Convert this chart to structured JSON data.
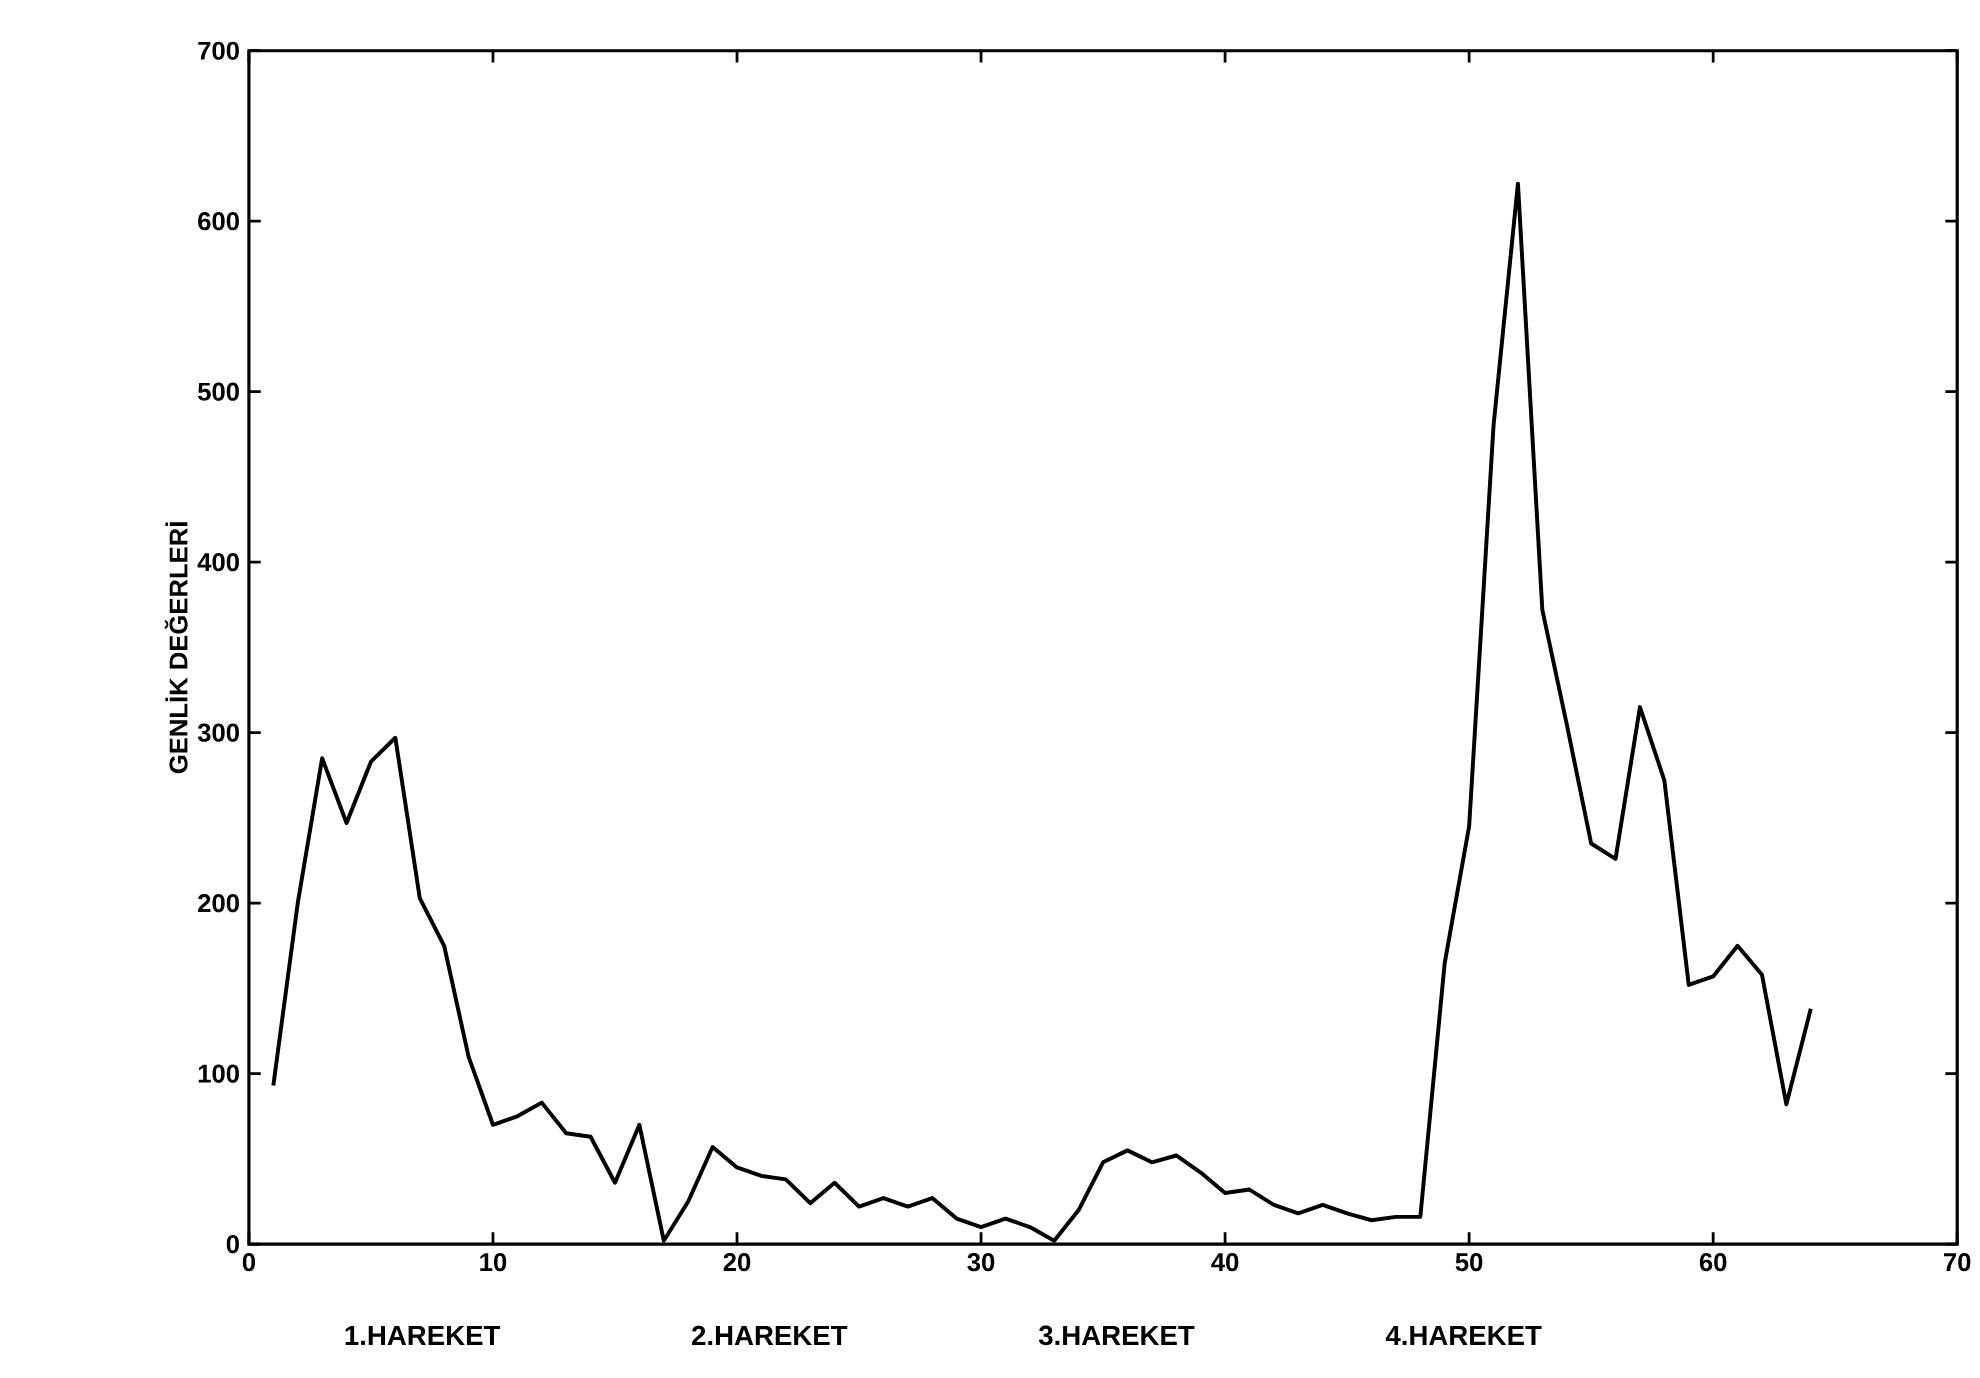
{
  "chart_data": {
    "type": "line",
    "ylabel": "GENLİK DEĞERLERİ",
    "annotations": [
      "1.HAREKET",
      "2.HAREKET",
      "3.HAREKET",
      "4.HAREKET"
    ],
    "x": [
      1,
      2,
      3,
      4,
      5,
      6,
      7,
      8,
      9,
      10,
      11,
      12,
      13,
      14,
      15,
      16,
      17,
      18,
      19,
      20,
      21,
      22,
      23,
      24,
      25,
      26,
      27,
      28,
      29,
      30,
      31,
      32,
      33,
      34,
      35,
      36,
      37,
      38,
      39,
      40,
      41,
      42,
      43,
      44,
      45,
      46,
      47,
      48,
      49,
      50,
      51,
      52,
      53,
      54,
      55,
      56,
      57,
      58,
      59,
      60,
      61,
      62,
      63,
      64
    ],
    "series": [
      {
        "color": "#000000",
        "values": [
          93,
          200,
          285,
          247,
          283,
          297,
          203,
          175,
          110,
          70,
          75,
          83,
          65,
          63,
          36,
          70,
          2,
          25,
          57,
          45,
          40,
          38,
          24,
          36,
          22,
          27,
          22,
          27,
          15,
          10,
          15,
          10,
          2,
          20,
          48,
          55,
          48,
          52,
          42,
          30,
          32,
          23,
          18,
          23,
          18,
          14,
          16,
          16,
          165,
          245,
          480,
          622,
          372,
          305,
          235,
          226,
          315,
          272,
          152,
          157,
          175,
          158,
          82,
          138
        ]
      }
    ],
    "xlim": [
      0,
      70
    ],
    "xticks": [
      0,
      10,
      20,
      30,
      40,
      50,
      60,
      70
    ],
    "ylim": [
      0,
      700
    ],
    "yticks": [
      0,
      100,
      200,
      300,
      400,
      500,
      600,
      700
    ],
    "grid": false,
    "marker": "none",
    "line_style": "solid"
  }
}
